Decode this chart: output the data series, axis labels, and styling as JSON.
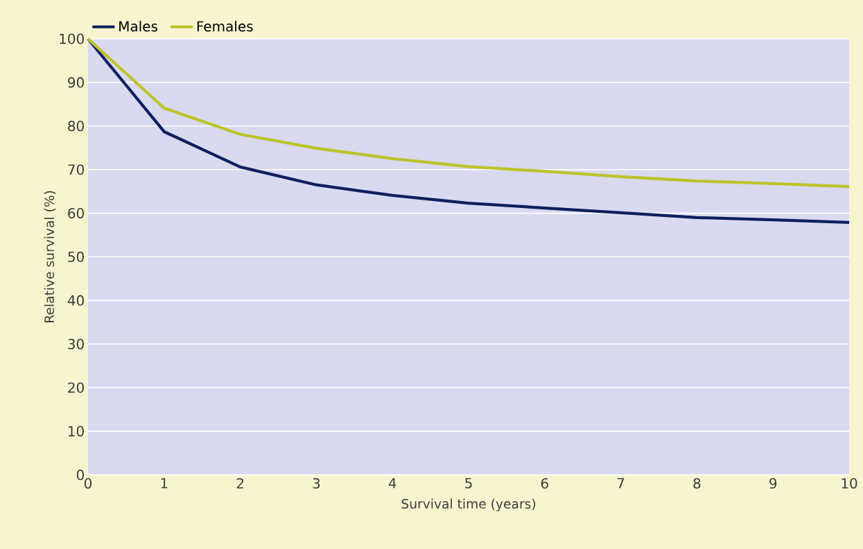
{
  "chart_data": {
    "type": "line",
    "xlabel": "Survival time (years)",
    "ylabel": "Relative survival (%)",
    "x": [
      0,
      1,
      2,
      3,
      4,
      5,
      6,
      7,
      8,
      9,
      10
    ],
    "series": [
      {
        "name": "Males",
        "color": "#0d1f5e",
        "values": [
          100,
          78.7,
          70.6,
          66.5,
          64.1,
          62.3,
          61.2,
          60.1,
          59.0,
          58.5,
          57.9
        ]
      },
      {
        "name": "Females",
        "color": "#bcc42a",
        "values": [
          100,
          84.1,
          78.1,
          74.9,
          72.5,
          70.7,
          69.6,
          68.4,
          67.4,
          66.8,
          66.1
        ]
      }
    ],
    "xlim": [
      0,
      10
    ],
    "xticks": [
      0,
      1,
      2,
      3,
      4,
      5,
      6,
      7,
      8,
      9,
      10
    ],
    "ylim": [
      0,
      100
    ],
    "yticks": [
      0,
      10,
      20,
      30,
      40,
      50,
      60,
      70,
      80,
      90,
      100
    ],
    "grid": "y",
    "legend": "top left",
    "marker": "none",
    "line_style": "solid"
  }
}
